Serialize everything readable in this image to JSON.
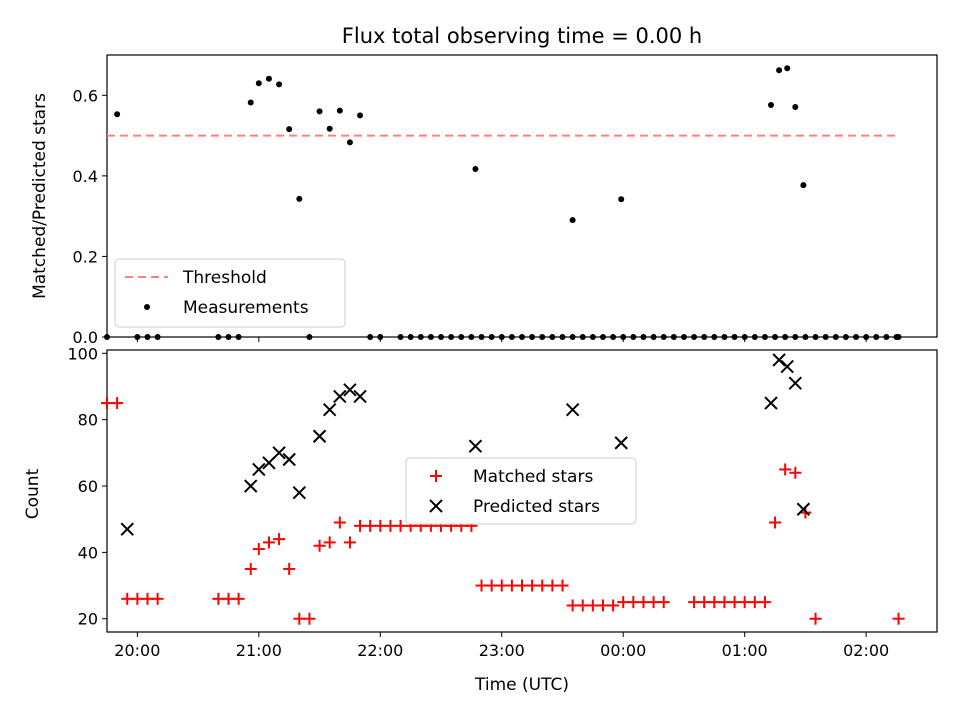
{
  "chart_data": [
    {
      "type": "scatter",
      "title": "Flux total observing time = 0.00 h",
      "ylabel": "Matched/Predicted stars",
      "ylim": [
        0,
        0.7
      ],
      "yticks": [
        "0.0",
        "0.2",
        "0.4",
        "0.6"
      ],
      "xlim": [
        "19:45",
        "02:35"
      ],
      "legend": {
        "placement": "lower-left",
        "entries": [
          "Threshold",
          "Measurements"
        ]
      },
      "threshold": {
        "name": "Threshold",
        "value": 0.5,
        "x_range": [
          "19:45",
          "02:16"
        ],
        "color": "#ff7f7f"
      },
      "series": [
        {
          "name": "Measurements",
          "color": "#000000",
          "points": [
            [
              "19:45",
              0
            ],
            [
              "19:50",
              0.553
            ],
            [
              "20:00",
              0
            ],
            [
              "20:05",
              0
            ],
            [
              "20:10",
              0
            ],
            [
              "20:40",
              0
            ],
            [
              "20:45",
              0
            ],
            [
              "20:50",
              0
            ],
            [
              "20:56",
              0.582
            ],
            [
              "21:00",
              0.63
            ],
            [
              "21:05",
              0.641
            ],
            [
              "21:10",
              0.627
            ],
            [
              "21:15",
              0.516
            ],
            [
              "21:20",
              0.343
            ],
            [
              "21:25",
              0
            ],
            [
              "21:30",
              0.56
            ],
            [
              "21:35",
              0.517
            ],
            [
              "21:40",
              0.562
            ],
            [
              "21:45",
              0.483
            ],
            [
              "21:50",
              0.55
            ],
            [
              "21:55",
              0
            ],
            [
              "22:00",
              0
            ],
            [
              "22:10",
              0
            ],
            [
              "22:15",
              0
            ],
            [
              "22:20",
              0
            ],
            [
              "22:25",
              0
            ],
            [
              "22:30",
              0
            ],
            [
              "22:35",
              0
            ],
            [
              "22:40",
              0
            ],
            [
              "22:45",
              0
            ],
            [
              "22:50",
              0
            ],
            [
              "22:55",
              0
            ],
            [
              "23:00",
              0
            ],
            [
              "23:05",
              0
            ],
            [
              "23:10",
              0
            ],
            [
              "23:15",
              0
            ],
            [
              "23:20",
              0
            ],
            [
              "23:25",
              0
            ],
            [
              "23:30",
              0
            ],
            [
              "23:35",
              0
            ],
            [
              "23:40",
              0
            ],
            [
              "23:45",
              0
            ],
            [
              "23:50",
              0
            ],
            [
              "23:55",
              0
            ],
            [
              "00:00",
              0
            ],
            [
              "00:05",
              0
            ],
            [
              "00:10",
              0
            ],
            [
              "00:15",
              0
            ],
            [
              "00:20",
              0
            ],
            [
              "00:25",
              0
            ],
            [
              "00:30",
              0
            ],
            [
              "00:35",
              0
            ],
            [
              "00:40",
              0
            ],
            [
              "00:45",
              0
            ],
            [
              "00:50",
              0
            ],
            [
              "00:55",
              0
            ],
            [
              "01:00",
              0
            ],
            [
              "01:05",
              0
            ],
            [
              "01:10",
              0
            ],
            [
              "01:15",
              0
            ],
            [
              "01:20",
              0
            ],
            [
              "01:25",
              0
            ],
            [
              "01:30",
              0
            ],
            [
              "01:35",
              0
            ],
            [
              "01:40",
              0
            ],
            [
              "01:45",
              0
            ],
            [
              "01:50",
              0
            ],
            [
              "01:55",
              0
            ],
            [
              "02:00",
              0
            ],
            [
              "02:05",
              0
            ],
            [
              "02:10",
              0
            ],
            [
              "02:15",
              0
            ],
            [
              "02:16",
              0
            ],
            [
              "22:47",
              0.417
            ],
            [
              "23:35",
              0.29
            ],
            [
              "23:59",
              0.342
            ],
            [
              "01:13",
              0.576
            ],
            [
              "01:17",
              0.662
            ],
            [
              "01:21",
              0.667
            ],
            [
              "01:25",
              0.571
            ],
            [
              "01:29",
              0.377
            ]
          ]
        }
      ]
    },
    {
      "type": "scatter",
      "ylabel": "Count",
      "xlabel": "Time (UTC)",
      "ylim": [
        16,
        101
      ],
      "yticks": [
        "20",
        "40",
        "60",
        "80",
        "100"
      ],
      "xlim": [
        "19:45",
        "02:35"
      ],
      "xticks": [
        "20:00",
        "21:00",
        "22:00",
        "23:00",
        "00:00",
        "01:00",
        "02:00"
      ],
      "legend": {
        "placement": "center",
        "entries": [
          "Matched stars",
          "Predicted stars"
        ]
      },
      "series": [
        {
          "name": "Matched stars",
          "marker": "plus",
          "color": "#ff0000",
          "points": [
            [
              "19:45",
              85
            ],
            [
              "19:50",
              85
            ],
            [
              "19:55",
              26
            ],
            [
              "20:00",
              26
            ],
            [
              "20:05",
              26
            ],
            [
              "20:10",
              26
            ],
            [
              "20:40",
              26
            ],
            [
              "20:45",
              26
            ],
            [
              "20:50",
              26
            ],
            [
              "20:56",
              35
            ],
            [
              "21:00",
              41
            ],
            [
              "21:05",
              43
            ],
            [
              "21:10",
              44
            ],
            [
              "21:15",
              35
            ],
            [
              "21:20",
              20
            ],
            [
              "21:25",
              20
            ],
            [
              "21:30",
              42
            ],
            [
              "21:35",
              43
            ],
            [
              "21:40",
              49
            ],
            [
              "21:45",
              43
            ],
            [
              "21:50",
              48
            ],
            [
              "21:55",
              48
            ],
            [
              "22:00",
              48
            ],
            [
              "22:05",
              48
            ],
            [
              "22:10",
              48
            ],
            [
              "22:15",
              48
            ],
            [
              "22:20",
              48
            ],
            [
              "22:25",
              48
            ],
            [
              "22:30",
              48
            ],
            [
              "22:35",
              48
            ],
            [
              "22:40",
              48
            ],
            [
              "22:45",
              48
            ],
            [
              "22:50",
              30
            ],
            [
              "22:55",
              30
            ],
            [
              "23:00",
              30
            ],
            [
              "23:05",
              30
            ],
            [
              "23:10",
              30
            ],
            [
              "23:15",
              30
            ],
            [
              "23:20",
              30
            ],
            [
              "23:25",
              30
            ],
            [
              "23:30",
              30
            ],
            [
              "23:35",
              24
            ],
            [
              "23:40",
              24
            ],
            [
              "23:45",
              24
            ],
            [
              "23:50",
              24
            ],
            [
              "23:55",
              24
            ],
            [
              "00:00",
              25
            ],
            [
              "00:05",
              25
            ],
            [
              "00:10",
              25
            ],
            [
              "00:15",
              25
            ],
            [
              "00:20",
              25
            ],
            [
              "00:35",
              25
            ],
            [
              "00:40",
              25
            ],
            [
              "00:45",
              25
            ],
            [
              "00:50",
              25
            ],
            [
              "00:55",
              25
            ],
            [
              "01:00",
              25
            ],
            [
              "01:05",
              25
            ],
            [
              "01:10",
              25
            ],
            [
              "01:15",
              49
            ],
            [
              "01:20",
              65
            ],
            [
              "01:25",
              64
            ],
            [
              "01:30",
              52
            ],
            [
              "01:35",
              20
            ],
            [
              "02:16",
              20
            ]
          ]
        },
        {
          "name": "Predicted stars",
          "marker": "x",
          "color": "#000000",
          "points": [
            [
              "19:55",
              47
            ],
            [
              "20:56",
              60
            ],
            [
              "21:00",
              65
            ],
            [
              "21:05",
              67
            ],
            [
              "21:10",
              70
            ],
            [
              "21:15",
              68
            ],
            [
              "21:20",
              58
            ],
            [
              "21:30",
              75
            ],
            [
              "21:35",
              83
            ],
            [
              "21:40",
              87
            ],
            [
              "21:45",
              89
            ],
            [
              "21:50",
              87
            ],
            [
              "22:47",
              72
            ],
            [
              "23:35",
              83
            ],
            [
              "23:59",
              73
            ],
            [
              "01:13",
              85
            ],
            [
              "01:17",
              98
            ],
            [
              "01:21",
              96
            ],
            [
              "01:25",
              91
            ],
            [
              "01:29",
              53
            ]
          ]
        }
      ]
    }
  ]
}
